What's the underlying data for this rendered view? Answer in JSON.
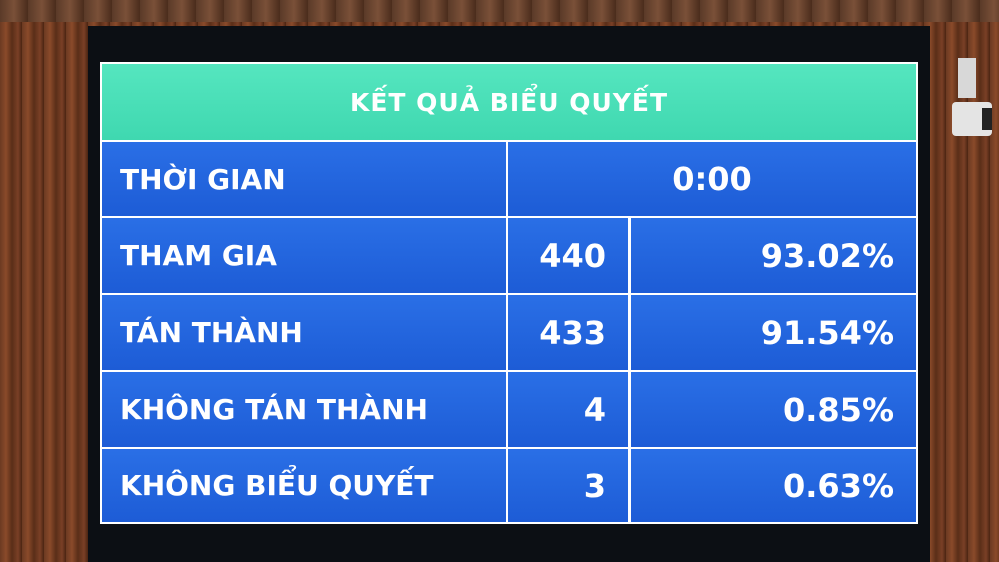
{
  "title": "KẾT QUẢ BIỂU QUYẾT",
  "time": {
    "label": "THỜI GIAN",
    "value": "0:00"
  },
  "rows": [
    {
      "label": "THAM GIA",
      "count": "440",
      "percent": "93.02%"
    },
    {
      "label": "TÁN THÀNH",
      "count": "433",
      "percent": "91.54%"
    },
    {
      "label": "KHÔNG TÁN THÀNH",
      "count": "4",
      "percent": "0.85%"
    },
    {
      "label": "KHÔNG BIỂU QUYẾT",
      "count": "3",
      "percent": "0.63%"
    }
  ],
  "colors": {
    "header": "#3fd8b0",
    "cell": "#1d5cd6",
    "grid": "#ffffff"
  }
}
